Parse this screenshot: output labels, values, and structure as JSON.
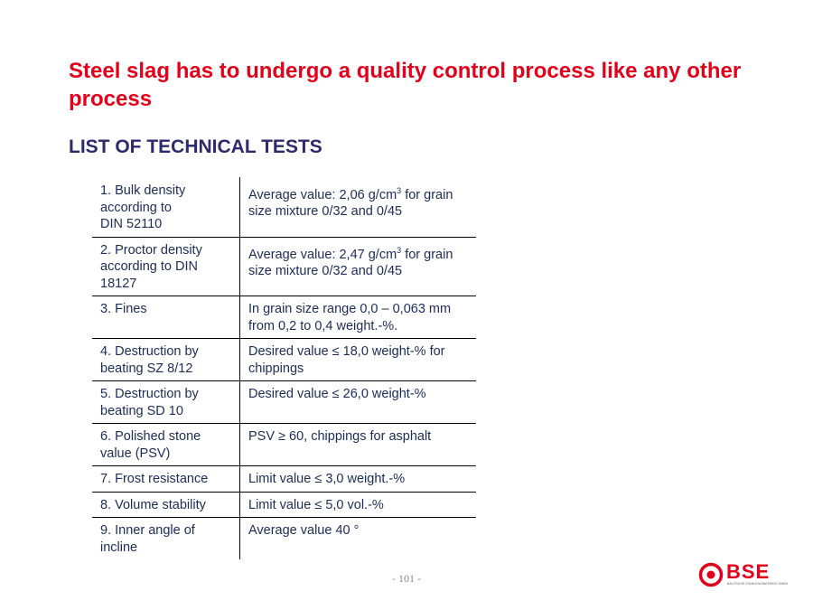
{
  "title": "Steel slag has to undergo a quality control process like any other process",
  "subtitle": "LIST OF TECHNICAL TESTS",
  "tests": [
    {
      "name_lines": [
        "1. Bulk density",
        "according to",
        "DIN 52110"
      ],
      "value_pre": "Average value: 2,06 g/cm",
      "value_sup": "3",
      "value_post": " for grain size mixture 0/32 and 0/45"
    },
    {
      "name_lines": [
        "2. Proctor density",
        "according to DIN",
        "18127"
      ],
      "value_pre": "Average value: 2,47 g/cm",
      "value_sup": "3",
      "value_post": " for grain size mixture 0/32 and 0/45"
    },
    {
      "name_lines": [
        "3. Fines"
      ],
      "value_pre": "In grain size range 0,0 – 0,063 mm from 0,2 to 0,4 weight.-%."
    },
    {
      "name_lines": [
        "4. Destruction by",
        "beating SZ 8/12"
      ],
      "value_pre": "Desired value ≤ 18,0 weight-% for chippings"
    },
    {
      "name_lines": [
        "5. Destruction by",
        "beating SD 10"
      ],
      "value_pre": "Desired value ≤ 26,0 weight-%"
    },
    {
      "name_lines": [
        "6. Polished stone",
        "value (PSV)"
      ],
      "value_pre": "PSV ≥ 60, chippings for asphalt"
    },
    {
      "name_lines": [
        "7. Frost resistance"
      ],
      "value_pre": "Limit value ≤ 3,0 weight.-%"
    },
    {
      "name_lines": [
        "8. Volume stability"
      ],
      "value_pre": "Limit value ≤ 5,0 vol.-%"
    },
    {
      "name_lines": [
        "9. Inner angle of",
        "incline"
      ],
      "value_pre": "Average value 40 °"
    }
  ],
  "footer": {
    "page_number": "- 101 -"
  },
  "logo": {
    "text": "BSE",
    "tagline": "BALTISCHE STAHLENGINEERING GMBH",
    "color": "#e3001b"
  }
}
